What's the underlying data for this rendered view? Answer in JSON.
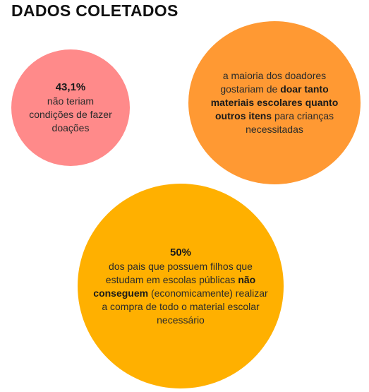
{
  "title": "DADOS COLETADOS",
  "colors": {
    "circle_1": "#ff8a8a",
    "circle_2": "#ff9933",
    "circle_3": "#ffb000"
  },
  "circle_1": {
    "stat": "43,1%",
    "text": "não teriam condições de fazer doações"
  },
  "circle_2": {
    "text_before": "a maioria dos doadores gostariam de",
    "text_bold": "doar tanto materiais escolares quanto outros itens",
    "text_after": "para crianças necessitadas"
  },
  "circle_3": {
    "stat": "50%",
    "text_before": "dos pais que possuem filhos que estudam em escolas públicas",
    "text_bold": "não conseguem",
    "text_after": "(economicamente) realizar a compra de todo o material escolar necessário"
  }
}
